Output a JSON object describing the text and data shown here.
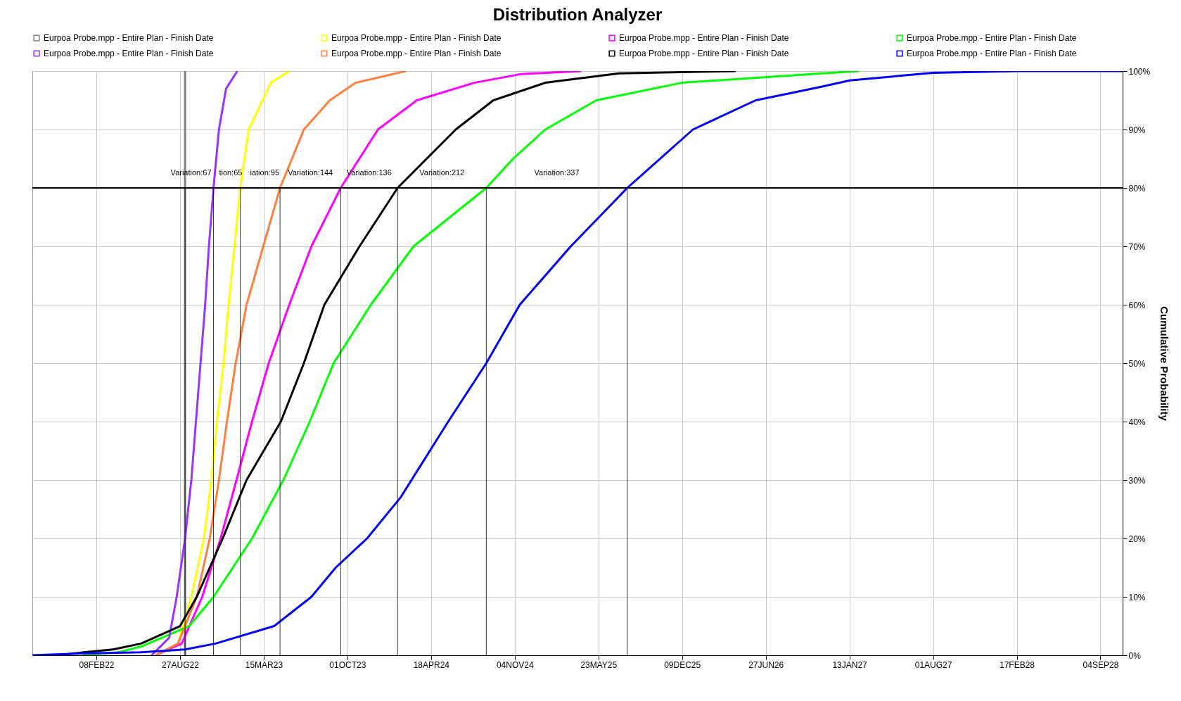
{
  "chart_data": {
    "type": "line",
    "title": "Distribution Analyzer",
    "ylabel": "Cumulative Probability",
    "xlim": [
      "2021-09-08",
      "2028-10-27"
    ],
    "xticks": [
      {
        "value": "2022-02-08",
        "label": "08FEB22"
      },
      {
        "value": "2022-08-27",
        "label": "27AUG22"
      },
      {
        "value": "2023-03-15",
        "label": "15MAR23"
      },
      {
        "value": "2023-10-01",
        "label": "01OCT23"
      },
      {
        "value": "2024-04-18",
        "label": "18APR24"
      },
      {
        "value": "2024-11-04",
        "label": "04NOV24"
      },
      {
        "value": "2025-05-23",
        "label": "23MAY25"
      },
      {
        "value": "2025-12-09",
        "label": "09DEC25"
      },
      {
        "value": "2026-06-27",
        "label": "27JUN26"
      },
      {
        "value": "2027-01-13",
        "label": "13JAN27"
      },
      {
        "value": "2027-08-01",
        "label": "01AUG27"
      },
      {
        "value": "2028-02-17",
        "label": "17FEB28"
      },
      {
        "value": "2028-09-04",
        "label": "04SEP28"
      }
    ],
    "ylim": [
      0,
      100
    ],
    "yticks": [
      {
        "value": 0,
        "label": "0%"
      },
      {
        "value": 10,
        "label": "10%"
      },
      {
        "value": 20,
        "label": "20%"
      },
      {
        "value": 30,
        "label": "30%"
      },
      {
        "value": 40,
        "label": "40%"
      },
      {
        "value": 50,
        "label": "50%"
      },
      {
        "value": 60,
        "label": "60%"
      },
      {
        "value": 70,
        "label": "70%"
      },
      {
        "value": 80,
        "label": "80%"
      },
      {
        "value": 90,
        "label": "90%"
      },
      {
        "value": 100,
        "label": "100%"
      }
    ],
    "grid": true,
    "legend": "top left",
    "line_style": "solid",
    "series": [
      {
        "name": "Eurpoa Probe.mpp - Entire Plan - Finish Date",
        "color": "#808080",
        "x": [
          "2022-09-08",
          "2022-09-08"
        ],
        "values": [
          0,
          100
        ]
      },
      {
        "name": "Eurpoa Probe.mpp - Entire Plan - Finish Date",
        "color": "#ffff00",
        "x": [
          "2022-06-30",
          "2022-08-22",
          "2022-09-23",
          "2022-10-23",
          "2022-11-10",
          "2022-11-23",
          "2022-12-09",
          "2022-12-21",
          "2023-01-04",
          "2023-01-18",
          "2023-02-07",
          "2023-04-01",
          "2023-05-15"
        ],
        "values": [
          0,
          2,
          10,
          20,
          30,
          40,
          50,
          60,
          70,
          80,
          90,
          98,
          100
        ]
      },
      {
        "name": "Eurpoa Probe.mpp - Entire Plan - Finish Date",
        "color": "#ff00ff",
        "x": [
          "2022-06-30",
          "2022-08-31",
          "2022-10-19",
          "2022-12-02",
          "2023-01-09",
          "2023-02-15",
          "2023-03-27",
          "2023-05-15",
          "2023-07-07",
          "2023-09-15",
          "2023-12-13",
          "2024-03-15",
          "2024-07-30",
          "2024-11-20",
          "2025-04-12"
        ],
        "values": [
          0,
          2,
          10,
          20,
          30,
          40,
          50,
          60,
          70,
          80,
          90,
          95,
          98,
          99.5,
          100
        ]
      },
      {
        "name": "Eurpoa Probe.mpp - Entire Plan - Finish Date",
        "color": "#00ff00",
        "x": [
          "2022-01-08",
          "2022-04-01",
          "2022-05-26",
          "2022-09-18",
          "2022-11-15",
          "2023-02-15",
          "2023-05-01",
          "2023-07-03",
          "2023-08-29",
          "2023-11-26",
          "2024-03-07",
          "2024-08-28",
          "2024-10-31",
          "2025-01-16",
          "2025-05-18",
          "2025-12-08",
          "2026-10-15",
          "2027-02-05"
        ],
        "values": [
          0,
          0.5,
          1.5,
          5,
          10,
          20,
          30,
          40,
          50,
          60,
          70,
          80,
          85,
          90,
          95,
          98,
          99.5,
          100
        ]
      },
      {
        "name": "Eurpoa Probe.mpp - Entire Plan - Finish Date",
        "color": "#9933ff",
        "x": [
          "2022-06-20",
          "2022-08-01",
          "2022-08-19",
          "2022-09-08",
          "2022-09-23",
          "2022-10-04",
          "2022-10-15",
          "2022-10-26",
          "2022-11-04",
          "2022-11-15",
          "2022-11-28",
          "2022-12-15",
          "2023-01-11"
        ],
        "values": [
          0,
          3,
          10,
          20,
          30,
          40,
          50,
          60,
          70,
          80,
          90,
          97,
          100
        ]
      },
      {
        "name": "Eurpoa Probe.mpp - Entire Plan - Finish Date",
        "color": "#ff7f3f",
        "x": [
          "2022-06-30",
          "2022-08-22",
          "2022-10-06",
          "2022-11-06",
          "2022-11-28",
          "2022-12-17",
          "2023-01-07",
          "2023-02-02",
          "2023-03-14",
          "2023-04-23",
          "2023-06-19",
          "2023-08-20",
          "2023-10-21",
          "2024-02-18"
        ],
        "values": [
          0,
          2,
          10,
          20,
          30,
          40,
          50,
          60,
          70,
          80,
          90,
          95,
          98,
          100
        ]
      },
      {
        "name": "Eurpoa Probe.mpp - Entire Plan - Finish Date",
        "color": "#000000",
        "x": [
          "2021-11-10",
          "2022-01-10",
          "2022-03-20",
          "2022-05-26",
          "2022-08-27",
          "2022-10-06",
          "2022-12-07",
          "2023-02-02",
          "2023-04-25",
          "2023-06-19",
          "2023-08-07",
          "2023-10-30",
          "2024-01-29",
          "2024-06-16",
          "2024-09-14",
          "2025-01-16",
          "2025-07-11",
          "2026-04-16"
        ],
        "values": [
          0,
          0.5,
          1,
          2,
          5,
          10,
          20,
          30,
          40,
          50,
          60,
          70,
          80,
          90,
          95,
          98,
          99.6,
          100
        ]
      },
      {
        "name": "Eurpoa Probe.mpp - Entire Plan - Finish Date",
        "color": "#0000ff",
        "x": [
          "2021-09-08",
          "2022-01-01",
          "2022-05-26",
          "2022-09-08",
          "2022-11-20",
          "2023-04-09",
          "2023-07-07",
          "2023-09-03",
          "2023-11-17",
          "2024-02-05",
          "2024-05-29",
          "2024-08-28",
          "2024-11-16",
          "2025-03-18",
          "2025-07-31",
          "2026-01-04",
          "2026-06-03",
          "2026-10-30",
          "2027-01-14",
          "2027-07-31",
          "2028-02-19",
          "2028-10-27"
        ],
        "values": [
          0,
          0.3,
          0.5,
          1,
          2,
          5,
          10,
          15,
          20,
          27,
          40,
          50,
          60,
          70,
          80,
          90,
          95,
          97.2,
          98.4,
          99.7,
          100,
          100
        ]
      }
    ],
    "ref_lines": [
      {
        "axis": "y",
        "value": 80
      },
      {
        "axis": "x",
        "value": "2022-09-08"
      },
      {
        "axis": "x",
        "value": "2022-11-15"
      },
      {
        "axis": "x",
        "value": "2023-01-18"
      },
      {
        "axis": "x",
        "value": "2023-04-23"
      },
      {
        "axis": "x",
        "value": "2023-09-15"
      },
      {
        "axis": "x",
        "value": "2024-01-29"
      },
      {
        "axis": "x",
        "value": "2024-08-28"
      },
      {
        "axis": "x",
        "value": "2025-07-31"
      }
    ],
    "annotations": [
      "Variation:67",
      "tion:65",
      "iation:95",
      "Variation:144",
      "Variation:136",
      "Variation:212",
      "Variation:337"
    ]
  }
}
